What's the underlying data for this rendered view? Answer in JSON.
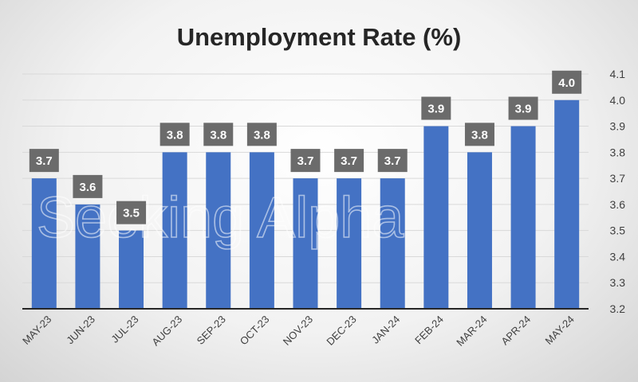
{
  "chart_data": {
    "type": "bar",
    "title": "Unemployment Rate (%)",
    "xlabel": "",
    "ylabel": "",
    "categories": [
      "MAY-23",
      "JUN-23",
      "JUL-23",
      "AUG-23",
      "SEP-23",
      "OCT-23",
      "NOV-23",
      "DEC-23",
      "JAN-24",
      "FEB-24",
      "MAR-24",
      "APR-24",
      "MAY-24"
    ],
    "values": [
      3.7,
      3.6,
      3.5,
      3.8,
      3.8,
      3.8,
      3.7,
      3.7,
      3.7,
      3.9,
      3.8,
      3.9,
      4.0
    ],
    "data_labels": [
      "3.7",
      "3.6",
      "3.5",
      "3.8",
      "3.8",
      "3.8",
      "3.7",
      "3.7",
      "3.7",
      "3.9",
      "3.8",
      "3.9",
      "4.0"
    ],
    "ylim": [
      3.2,
      4.1
    ],
    "yticks": [
      3.2,
      3.3,
      3.4,
      3.5,
      3.6,
      3.7,
      3.8,
      3.9,
      4.0,
      4.1
    ],
    "ytick_labels": [
      "3.2",
      "3.3",
      "3.4",
      "3.5",
      "3.6",
      "3.7",
      "3.8",
      "3.9",
      "4.0",
      "4.1"
    ],
    "y_axis_position": "right",
    "grid": true,
    "legend": "none",
    "colors": {
      "bar": "#4472c4",
      "data_label_bg": "#6b6b6b",
      "data_label_text": "#ffffff",
      "grid": "#d9d9d9",
      "axis": "#262626"
    }
  },
  "watermark": {
    "text": "Seeking Alpha"
  }
}
